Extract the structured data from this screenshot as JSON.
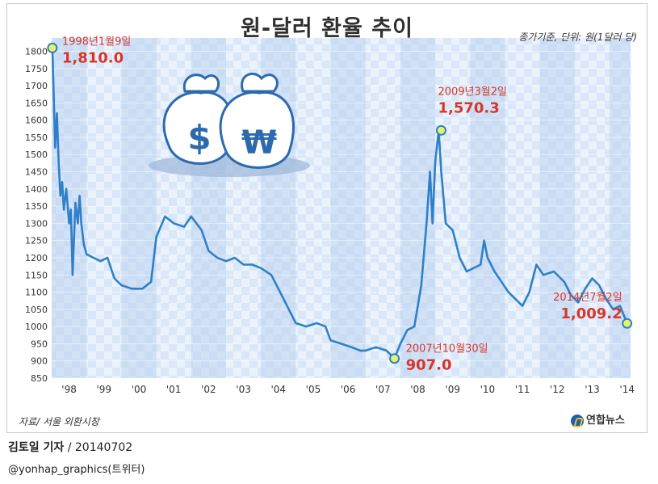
{
  "title": "원-달러 환율 추이",
  "unit_note": "종가기준, 단위: 원(1달러 당)",
  "source_note": "자료/ 서울 외환시장",
  "logo_text": "연합뉴스",
  "author": {
    "name": "김토일 기자",
    "date": "/ 20140702"
  },
  "twitter": "@yonhap_graphics(트위터)",
  "colors": {
    "line": "#2f80c8",
    "band_dark": "#bcd3f0",
    "band_light": "#d7e6f8",
    "annotation": "#d9362b",
    "marker": "#e8f26a"
  },
  "chart_data": {
    "type": "line",
    "title": "원-달러 환율 추이",
    "xlabel": "",
    "ylabel": "",
    "ylim": [
      850,
      1820
    ],
    "xlim": [
      1998.0,
      2014.6
    ],
    "yticks": [
      850,
      900,
      950,
      1000,
      1050,
      1100,
      1150,
      1200,
      1250,
      1300,
      1350,
      1400,
      1450,
      1500,
      1550,
      1600,
      1650,
      1700,
      1750,
      1800
    ],
    "xtick_labels": [
      "'98",
      "'99",
      "'00",
      "'01",
      "'02",
      "'03",
      "'04",
      "'05",
      "'06",
      "'07",
      "'08",
      "'09",
      "'10",
      "'11",
      "'12",
      "'13",
      "'14"
    ],
    "x": [
      1998.02,
      1998.05,
      1998.1,
      1998.15,
      1998.2,
      1998.25,
      1998.3,
      1998.35,
      1998.42,
      1998.5,
      1998.55,
      1998.6,
      1998.68,
      1998.75,
      1998.8,
      1998.85,
      1998.92,
      1999.0,
      1999.2,
      1999.4,
      1999.6,
      1999.8,
      2000.0,
      2000.3,
      2000.6,
      2000.85,
      2001.0,
      2001.25,
      2001.5,
      2001.8,
      2002.0,
      2002.3,
      2002.5,
      2002.75,
      2003.0,
      2003.25,
      2003.5,
      2003.75,
      2004.0,
      2004.3,
      2004.6,
      2004.85,
      2005.0,
      2005.3,
      2005.6,
      2005.85,
      2006.0,
      2006.3,
      2006.6,
      2006.85,
      2007.0,
      2007.3,
      2007.6,
      2007.83,
      2008.0,
      2008.2,
      2008.4,
      2008.6,
      2008.75,
      2008.85,
      2008.92,
      2009.0,
      2009.1,
      2009.17,
      2009.3,
      2009.5,
      2009.7,
      2009.9,
      2010.1,
      2010.3,
      2010.4,
      2010.5,
      2010.7,
      2010.9,
      2011.1,
      2011.3,
      2011.5,
      2011.7,
      2011.9,
      2012.1,
      2012.4,
      2012.7,
      2012.9,
      2013.1,
      2013.3,
      2013.5,
      2013.7,
      2013.9,
      2014.1,
      2014.3,
      2014.5
    ],
    "series": [
      {
        "values": [
          1810,
          1700,
          1520,
          1620,
          1480,
          1380,
          1420,
          1340,
          1400,
          1300,
          1340,
          1150,
          1360,
          1300,
          1380,
          1300,
          1240,
          1210,
          1200,
          1190,
          1200,
          1140,
          1120,
          1110,
          1110,
          1130,
          1260,
          1320,
          1300,
          1290,
          1320,
          1280,
          1220,
          1200,
          1190,
          1200,
          1180,
          1180,
          1170,
          1150,
          1090,
          1040,
          1010,
          1000,
          1010,
          1000,
          960,
          950,
          940,
          930,
          930,
          940,
          930,
          907,
          950,
          990,
          1000,
          1120,
          1300,
          1450,
          1300,
          1480,
          1570.3,
          1450,
          1300,
          1280,
          1200,
          1160,
          1170,
          1180,
          1250,
          1200,
          1160,
          1130,
          1100,
          1080,
          1060,
          1100,
          1180,
          1150,
          1160,
          1130,
          1090,
          1070,
          1110,
          1140,
          1120,
          1080,
          1050,
          1060,
          1009.2
        ]
      }
    ],
    "annotations": [
      {
        "date": "1998년1월9일",
        "value": "1,810.0",
        "x": 1998.02,
        "y": 1810
      },
      {
        "date": "2009년3월2일",
        "value": "1,570.3",
        "x": 2009.17,
        "y": 1570.3
      },
      {
        "date": "2007년10월30일",
        "value": "907.0",
        "x": 2007.83,
        "y": 907.0
      },
      {
        "date": "2014년7월2일",
        "value": "1,009.2",
        "x": 2014.5,
        "y": 1009.2
      }
    ],
    "grid": true
  }
}
